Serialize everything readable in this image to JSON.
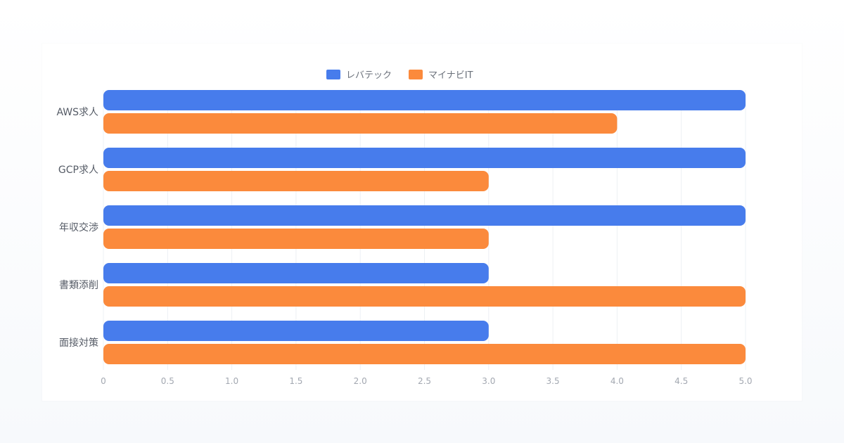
{
  "chart_data": {
    "type": "bar",
    "orientation": "horizontal",
    "categories": [
      "AWS求人",
      "GCP求人",
      "年収交渉",
      "書類添削",
      "面接対策"
    ],
    "series": [
      {
        "name": "レバテック",
        "color": "#477cec",
        "values": [
          5,
          5,
          5,
          3,
          3
        ]
      },
      {
        "name": "マイナビIT",
        "color": "#fb8a3c",
        "values": [
          4,
          3,
          3,
          5,
          5
        ]
      }
    ],
    "xlim": [
      0,
      5
    ],
    "xticks": [
      "0",
      "0.5",
      "1.0",
      "1.5",
      "2.0",
      "2.5",
      "3.0",
      "3.5",
      "4.0",
      "4.5",
      "5.0"
    ],
    "grid": true,
    "legend_position": "top-center"
  }
}
